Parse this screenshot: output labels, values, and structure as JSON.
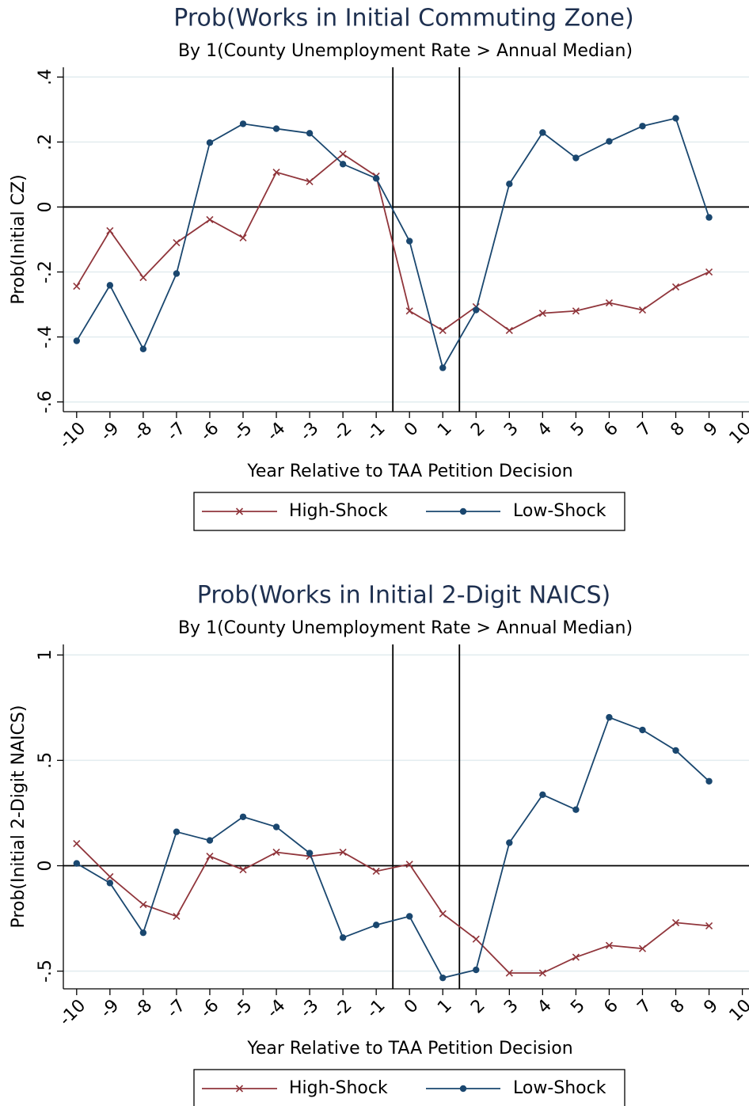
{
  "chart_data": [
    {
      "type": "line",
      "title": "Prob(Works in Initial Commuting Zone)",
      "subtitle": "By 1(County Unemployment Rate > Annual Median)",
      "x_label": "Year Relative to TAA Petition Decision",
      "y_label": "Prob(Initial CZ)",
      "x": [
        -10,
        -9,
        -8,
        -7,
        -6,
        -5,
        -4,
        -3,
        -2,
        -1,
        0,
        1,
        2,
        3,
        4,
        5,
        6,
        7,
        8,
        9
      ],
      "xlim": [
        -10.4,
        10.2
      ],
      "xticks": [
        -10,
        -9,
        -8,
        -7,
        -6,
        -5,
        -4,
        -3,
        -2,
        -1,
        0,
        1,
        2,
        3,
        4,
        5,
        6,
        7,
        8,
        9,
        10
      ],
      "ylim": [
        -0.63,
        0.43
      ],
      "yticks": [
        {
          "value": 0.4,
          "label": ".4"
        },
        {
          "value": 0.2,
          "label": ".2"
        },
        0,
        {
          "value": -0.2,
          "label": "-.2"
        },
        {
          "value": -0.4,
          "label": "-.4"
        },
        {
          "value": -0.6,
          "label": "-.6"
        }
      ],
      "grid": true,
      "vlines": [
        -0.5,
        1.5
      ],
      "hline": 0,
      "series": [
        {
          "name": "High-Shock",
          "color": "#90353b",
          "marker": "x",
          "values": [
            -0.244,
            -0.073,
            -0.217,
            -0.11,
            -0.039,
            -0.095,
            0.107,
            0.078,
            0.163,
            0.095,
            -0.32,
            -0.38,
            -0.307,
            -0.38,
            -0.327,
            -0.32,
            -0.295,
            -0.317,
            -0.246,
            -0.2
          ]
        },
        {
          "name": "Low-Shock",
          "color": "#1a476f",
          "marker": "dot",
          "values": [
            -0.412,
            -0.241,
            -0.437,
            -0.205,
            0.198,
            0.256,
            0.241,
            0.227,
            0.132,
            0.088,
            -0.105,
            -0.495,
            -0.317,
            0.071,
            0.229,
            0.151,
            0.202,
            0.249,
            0.273,
            -0.032
          ]
        }
      ]
    },
    {
      "type": "line",
      "title": "Prob(Works in Initial 2-Digit NAICS)",
      "subtitle": "By 1(County Unemployment Rate > Annual Median)",
      "x_label": "Year Relative to TAA Petition Decision",
      "y_label": "Prob(Initial 2-Digit NAICS)",
      "x": [
        -10,
        -9,
        -8,
        -7,
        -6,
        -5,
        -4,
        -3,
        -2,
        -1,
        0,
        1,
        2,
        3,
        4,
        5,
        6,
        7,
        8,
        9
      ],
      "xlim": [
        -10.4,
        10.2
      ],
      "xticks": [
        -10,
        -9,
        -8,
        -7,
        -6,
        -5,
        -4,
        -3,
        -2,
        -1,
        0,
        1,
        2,
        3,
        4,
        5,
        6,
        7,
        8,
        9,
        10
      ],
      "ylim": [
        -0.584,
        1.05
      ],
      "yticks": [
        1,
        {
          "value": 0.5,
          "label": ".5"
        },
        0,
        {
          "value": -0.5,
          "label": "-.5"
        }
      ],
      "grid": true,
      "vlines": [
        -0.5,
        1.5
      ],
      "hline": 0,
      "series": [
        {
          "name": "High-Shock",
          "color": "#90353b",
          "marker": "x",
          "values": [
            0.105,
            -0.052,
            -0.184,
            -0.24,
            0.045,
            -0.019,
            0.064,
            0.045,
            0.064,
            -0.026,
            0.007,
            -0.228,
            -0.348,
            -0.509,
            -0.509,
            -0.434,
            -0.378,
            -0.393,
            -0.27,
            -0.285
          ]
        },
        {
          "name": "Low-Shock",
          "color": "#1a476f",
          "marker": "dot",
          "values": [
            0.011,
            -0.082,
            -0.318,
            0.161,
            0.12,
            0.232,
            0.184,
            0.06,
            -0.341,
            -0.281,
            -0.24,
            -0.532,
            -0.494,
            0.109,
            0.337,
            0.266,
            0.704,
            0.644,
            0.547,
            0.401
          ]
        }
      ]
    }
  ]
}
